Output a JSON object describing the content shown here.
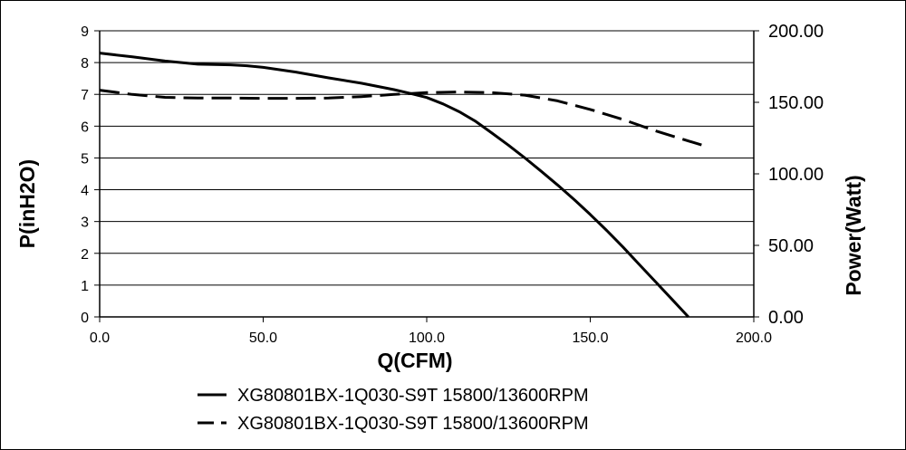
{
  "chart_data": {
    "type": "line",
    "title": "",
    "xlabel": "Q(CFM)",
    "ylabel": "P(inH2O)",
    "y2label": "Power(Watt)",
    "xlim": [
      0,
      200
    ],
    "ylim": [
      0,
      9
    ],
    "y2lim": [
      0,
      200
    ],
    "x_ticks": [
      "0.0",
      "50.0",
      "100.0",
      "150.0",
      "200.0"
    ],
    "y_ticks": [
      "0",
      "1",
      "2",
      "3",
      "4",
      "5",
      "6",
      "7",
      "8",
      "9"
    ],
    "y2_ticks": [
      "0.00",
      "50.00",
      "100.00",
      "150.00",
      "200.00"
    ],
    "grid": "horizontal",
    "legend": "bottom",
    "series": [
      {
        "name": "XG80801BX-1Q030-S9T 15800/13600RPM",
        "axis": "left",
        "style": "solid",
        "x": [
          0,
          10,
          20,
          30,
          40,
          45,
          50,
          60,
          70,
          80,
          90,
          95,
          100,
          105,
          110,
          115,
          120,
          125,
          130,
          135,
          140,
          145,
          150,
          155,
          160,
          165,
          170,
          175,
          180,
          185
        ],
        "y": [
          8.3,
          8.18,
          8.05,
          7.95,
          7.93,
          7.9,
          7.85,
          7.7,
          7.52,
          7.35,
          7.15,
          7.03,
          6.9,
          6.7,
          6.45,
          6.15,
          5.78,
          5.4,
          5.0,
          4.58,
          4.15,
          3.7,
          3.22,
          2.72,
          2.2,
          1.65,
          1.1,
          0.55,
          0.0,
          -0.3
        ]
      },
      {
        "name": "XG80801BX-1Q030-S9T 15800/13600RPM",
        "axis": "right",
        "style": "dashed",
        "x": [
          0,
          10,
          20,
          30,
          40,
          50,
          60,
          70,
          80,
          90,
          100,
          110,
          120,
          130,
          140,
          150,
          160,
          170,
          180,
          185
        ],
        "y": [
          158.5,
          155.5,
          153.5,
          153.0,
          153.0,
          152.8,
          152.8,
          153.0,
          154.0,
          155.5,
          156.8,
          157.2,
          156.8,
          155.0,
          151.0,
          145.0,
          138.0,
          130.0,
          123.0,
          119.5
        ]
      }
    ]
  }
}
